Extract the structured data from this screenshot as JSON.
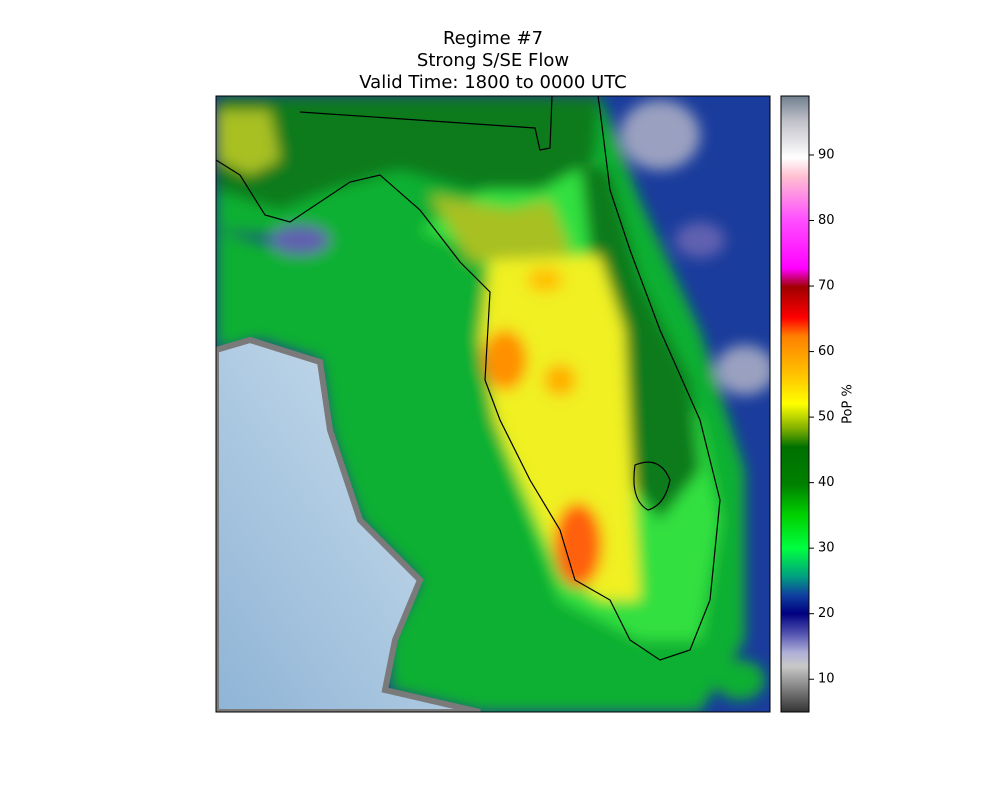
{
  "chart_data": {
    "type": "map",
    "title": "Regime #7",
    "subtitle": "Strong S/SE Flow",
    "valid_time": "Valid Time: 1800 to 0000 UTC",
    "colorbar_label": "PoP %",
    "colorbar_lim": [
      5,
      99
    ],
    "colorbar_ticks": [
      10,
      20,
      30,
      40,
      50,
      60,
      70,
      80,
      90
    ]
  }
}
